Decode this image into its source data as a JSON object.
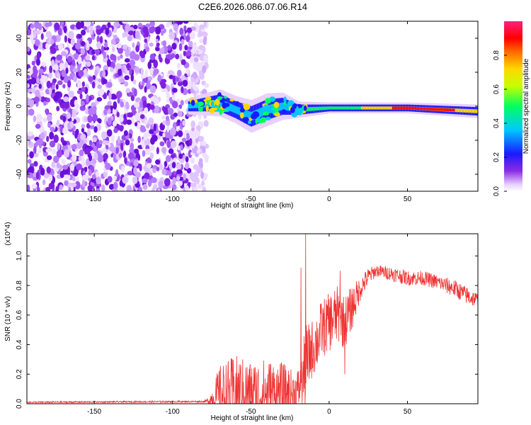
{
  "title": "C2E6.2026.086.07.06.R14",
  "chart_data": [
    {
      "type": "heatmap",
      "name": "spectrogram",
      "xlabel": "Height of straight line (km)",
      "ylabel": "Frequency (Hz)",
      "xlim": [
        -193,
        95
      ],
      "ylim": [
        -50,
        50
      ],
      "xticks": [
        -150,
        -100,
        -50,
        0,
        50
      ],
      "yticks": [
        -40,
        -20,
        0,
        20,
        40
      ],
      "noise_region_x": [
        -193,
        -82
      ],
      "signal_band": [
        {
          "x": -90,
          "center": 0,
          "width": 6
        },
        {
          "x": -70,
          "center": 2,
          "width": 10
        },
        {
          "x": -60,
          "center": -2,
          "width": 10
        },
        {
          "x": -50,
          "center": -6,
          "width": 12
        },
        {
          "x": -40,
          "center": -2,
          "width": 12
        },
        {
          "x": -30,
          "center": 0,
          "width": 10
        },
        {
          "x": -20,
          "center": -2,
          "width": 6
        },
        {
          "x": 0,
          "center": -1,
          "width": 4
        },
        {
          "x": 20,
          "center": -1,
          "width": 4
        },
        {
          "x": 50,
          "center": -1,
          "width": 4
        },
        {
          "x": 95,
          "center": -3,
          "width": 5
        }
      ],
      "colorbar": {
        "label": "Normalized spectral amplitude",
        "range": [
          0,
          1
        ],
        "ticks": [
          "0.0",
          "0.2",
          "0.4",
          "0.6",
          "0.8"
        ],
        "tick_values": [
          0,
          0.2,
          0.4,
          0.6,
          0.8
        ]
      }
    },
    {
      "type": "line",
      "name": "snr",
      "xlabel": "Height of straight line (km)",
      "ylabel": "SNR (10 * v/v)",
      "yscale_label": "(x10^4)",
      "xlim": [
        -193,
        95
      ],
      "ylim": [
        0,
        1.15
      ],
      "xticks": [
        -150,
        -100,
        -50,
        0,
        50
      ],
      "yticks": [
        "0.0",
        "0.2",
        "0.4",
        "0.6",
        "0.8",
        "1.0"
      ],
      "ytick_values": [
        0,
        0.2,
        0.4,
        0.6,
        0.8,
        1.0
      ],
      "color": "#ee3333",
      "envelope": {
        "x": [
          -193,
          -80,
          -77,
          -70,
          -60,
          -50,
          -40,
          -30,
          -22,
          -18,
          -15,
          -12,
          -8,
          -5,
          0,
          5,
          10,
          15,
          20,
          25,
          30,
          40,
          50,
          60,
          70,
          80,
          90,
          95
        ],
        "base": [
          0.01,
          0.015,
          0.02,
          0.06,
          0.08,
          0.07,
          0.06,
          0.08,
          0.07,
          0.12,
          0.25,
          0.35,
          0.42,
          0.5,
          0.55,
          0.6,
          0.55,
          0.66,
          0.78,
          0.86,
          0.9,
          0.88,
          0.85,
          0.85,
          0.82,
          0.78,
          0.72,
          0.7
        ],
        "amplitude": [
          0.005,
          0.006,
          0.02,
          0.2,
          0.25,
          0.22,
          0.25,
          0.2,
          0.15,
          0.15,
          0.3,
          0.2,
          0.2,
          0.2,
          0.2,
          0.2,
          0.18,
          0.15,
          0.08,
          0.06,
          0.04,
          0.05,
          0.05,
          0.05,
          0.05,
          0.06,
          0.06,
          0.05
        ]
      },
      "spikes": [
        {
          "x": -15,
          "y": 1.15
        },
        {
          "x": -18,
          "y": 0.92
        },
        {
          "x": 7,
          "y": 0.9
        },
        {
          "x": 10,
          "y": 0.2
        }
      ]
    }
  ]
}
